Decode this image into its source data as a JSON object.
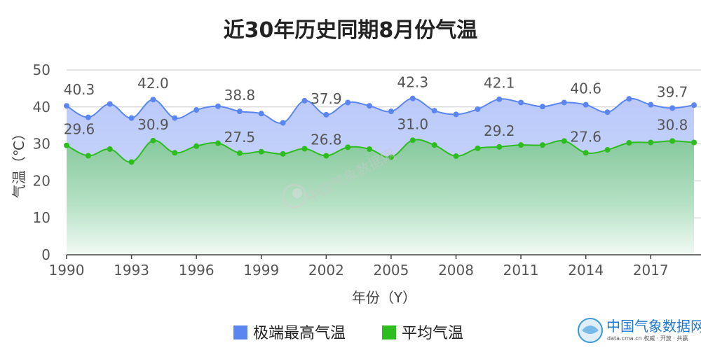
{
  "chart_data": {
    "type": "area",
    "title": "近30年历史同期8月份气温",
    "xlabel": "年份（Y）",
    "ylabel": "气温（℃）",
    "ylim": [
      0,
      50
    ],
    "yticks": [
      0,
      10,
      20,
      30,
      40,
      50
    ],
    "xticks": [
      1990,
      1993,
      1996,
      1999,
      2002,
      2005,
      2008,
      2011,
      2014,
      2017
    ],
    "x": [
      1990,
      1991,
      1992,
      1993,
      1994,
      1995,
      1996,
      1997,
      1998,
      1999,
      2000,
      2001,
      2002,
      2003,
      2004,
      2005,
      2006,
      2007,
      2008,
      2009,
      2010,
      2011,
      2012,
      2013,
      2014,
      2015,
      2016,
      2017,
      2018,
      2019
    ],
    "grid": true,
    "legend_position": "bottom",
    "series": [
      {
        "name": "极端最高气温",
        "color": "#5b86f2",
        "fill": "#bfcdf9",
        "values": [
          40.3,
          37.2,
          40.8,
          37.0,
          42.0,
          37.0,
          39.2,
          40.2,
          38.8,
          38.2,
          35.7,
          41.7,
          37.9,
          41.2,
          40.3,
          38.8,
          42.3,
          39.0,
          38.0,
          39.4,
          42.1,
          41.2,
          40.1,
          41.2,
          40.6,
          38.6,
          42.2,
          40.6,
          39.7,
          40.5
        ],
        "labeled_years": [
          1990,
          1994,
          1998,
          2002,
          2006,
          2010,
          2014,
          2018
        ]
      },
      {
        "name": "平均气温",
        "color": "#2ebd1f",
        "fill": "#8fcfa8",
        "values": [
          29.6,
          26.8,
          28.6,
          25.1,
          30.9,
          27.6,
          29.4,
          30.2,
          27.5,
          27.9,
          27.3,
          28.7,
          26.8,
          29.1,
          28.6,
          26.4,
          31.0,
          29.7,
          26.7,
          28.8,
          29.2,
          29.7,
          29.7,
          30.8,
          27.6,
          28.4,
          30.3,
          30.4,
          30.8,
          30.4
        ],
        "labeled_years": [
          1990,
          1994,
          1998,
          2002,
          2006,
          2010,
          2014,
          2018
        ]
      }
    ]
  },
  "watermark": {
    "center": "中国气象数据网",
    "brand": "中国气象数据网",
    "site": "data.cma.cn 权威 · 开放 · 共赢"
  }
}
